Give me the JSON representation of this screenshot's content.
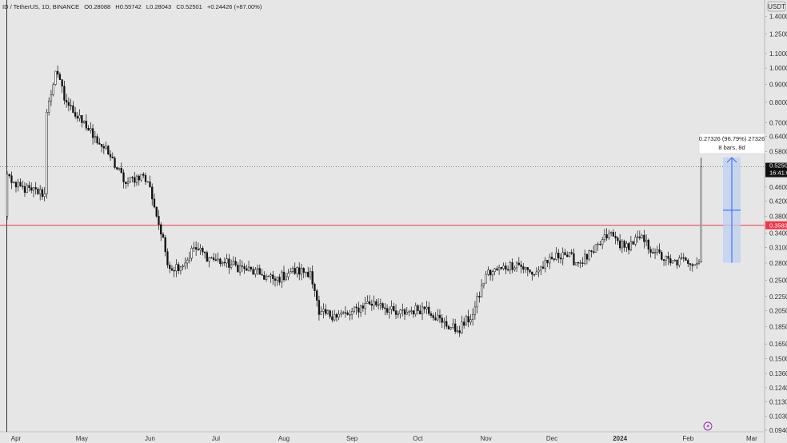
{
  "header": {
    "symbol_line": "ID / TetherUS, 1D, BINANCE",
    "open": "O0.28088",
    "high": "H0.55742",
    "low": "L0.28043",
    "close": "C0.52501",
    "change": "+0.24426 (+87.00%)"
  },
  "axis": {
    "currency": "USDT",
    "last_price_label": "0.5250",
    "countdown_label": "16:41:0",
    "hline_label": "0.3583",
    "tv_icon_name": "tradingview-lightning-icon"
  },
  "measure": {
    "line1": "0.27326 (96.79%) 27326",
    "line2": "8 bars, 8d"
  },
  "colors": {
    "background": "#e6e6e6",
    "candle": "#111111",
    "hline": "#f23645",
    "measure_fill": "#bcd0f0",
    "measure_line": "#2962ff",
    "last_price_tag": "#111111"
  },
  "chart_data": {
    "type": "candlestick",
    "title": "ID / TetherUS, 1D, BINANCE",
    "xlabel": "",
    "ylabel": "",
    "y_scale": "log",
    "ylim": [
      0.093,
      1.56
    ],
    "y_ticks": [
      "1.4000",
      "1.2500",
      "1.1000",
      "1.0000",
      "0.9000",
      "0.8000",
      "0.7000",
      "0.6400",
      "0.5800",
      "0.5250",
      "0.4600",
      "0.4200",
      "0.3800",
      "0.3400",
      "0.3100",
      "0.2800",
      "0.2500",
      "0.2250",
      "0.2050",
      "0.1850",
      "0.1650",
      "0.1500",
      "0.1360",
      "0.1240",
      "0.1130",
      "0.1030",
      "0.0940"
    ],
    "x_ticks": [
      "Apr",
      "May",
      "Jun",
      "Jul",
      "Aug",
      "Sep",
      "Oct",
      "Nov",
      "Dec",
      "2024",
      "Feb",
      "Mar"
    ],
    "horizontal_line": 0.3583,
    "last_close": 0.52501,
    "series": [
      {
        "date": "2023-03-28",
        "close": 0.5,
        "open": 0.38
      },
      {
        "date": "2023-04-01",
        "close": 0.46
      },
      {
        "date": "2023-04-08",
        "close": 0.45
      },
      {
        "date": "2023-04-14",
        "close": 0.44
      },
      {
        "date": "2023-04-15",
        "close": 0.75
      },
      {
        "date": "2023-04-19",
        "close": 0.98
      },
      {
        "date": "2023-04-24",
        "close": 0.8
      },
      {
        "date": "2023-05-01",
        "close": 0.7
      },
      {
        "date": "2023-05-07",
        "close": 0.64
      },
      {
        "date": "2023-05-14",
        "close": 0.56
      },
      {
        "date": "2023-05-21",
        "close": 0.47
      },
      {
        "date": "2023-05-28",
        "close": 0.5
      },
      {
        "date": "2023-06-01",
        "close": 0.46
      },
      {
        "date": "2023-06-05",
        "close": 0.36
      },
      {
        "date": "2023-06-10",
        "close": 0.27
      },
      {
        "date": "2023-06-17",
        "close": 0.28
      },
      {
        "date": "2023-06-21",
        "close": 0.31
      },
      {
        "date": "2023-06-28",
        "close": 0.29
      },
      {
        "date": "2023-07-05",
        "close": 0.28
      },
      {
        "date": "2023-07-14",
        "close": 0.27
      },
      {
        "date": "2023-07-21",
        "close": 0.26
      },
      {
        "date": "2023-07-28",
        "close": 0.25
      },
      {
        "date": "2023-08-04",
        "close": 0.265
      },
      {
        "date": "2023-08-13",
        "close": 0.265
      },
      {
        "date": "2023-08-17",
        "close": 0.2
      },
      {
        "date": "2023-08-24",
        "close": 0.2
      },
      {
        "date": "2023-08-31",
        "close": 0.2
      },
      {
        "date": "2023-09-07",
        "close": 0.215
      },
      {
        "date": "2023-09-14",
        "close": 0.215
      },
      {
        "date": "2023-09-21",
        "close": 0.2
      },
      {
        "date": "2023-09-28",
        "close": 0.205
      },
      {
        "date": "2023-10-05",
        "close": 0.21
      },
      {
        "date": "2023-10-12",
        "close": 0.19
      },
      {
        "date": "2023-10-19",
        "close": 0.18
      },
      {
        "date": "2023-10-26",
        "close": 0.2
      },
      {
        "date": "2023-11-01",
        "close": 0.26
      },
      {
        "date": "2023-11-08",
        "close": 0.27
      },
      {
        "date": "2023-11-15",
        "close": 0.28
      },
      {
        "date": "2023-11-22",
        "close": 0.26
      },
      {
        "date": "2023-11-29",
        "close": 0.28
      },
      {
        "date": "2023-12-06",
        "close": 0.3
      },
      {
        "date": "2023-12-13",
        "close": 0.28
      },
      {
        "date": "2023-12-20",
        "close": 0.3
      },
      {
        "date": "2023-12-27",
        "close": 0.34
      },
      {
        "date": "2024-01-03",
        "close": 0.31
      },
      {
        "date": "2024-01-10",
        "close": 0.33
      },
      {
        "date": "2024-01-17",
        "close": 0.3
      },
      {
        "date": "2024-01-24",
        "close": 0.28
      },
      {
        "date": "2024-01-31",
        "close": 0.285
      },
      {
        "date": "2024-02-06",
        "close": 0.282
      },
      {
        "date": "2024-02-07",
        "close": 0.525
      }
    ]
  }
}
